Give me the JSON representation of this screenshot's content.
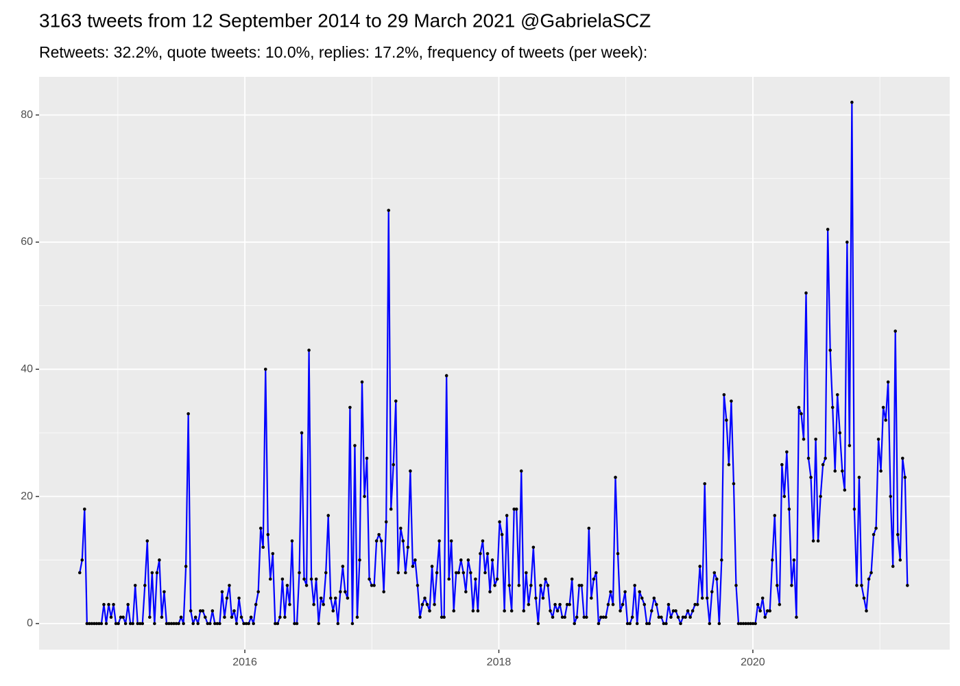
{
  "chart_data": {
    "type": "line",
    "title": "3163 tweets from 12 September 2014 to 29 March 2021 @GabrielaSCZ",
    "subtitle": "Retweets: 32.2%, quote tweets: 10.0%, replies: 17.2%, frequency of tweets (per week):",
    "color": "#0000ff",
    "point_color": "#000000",
    "xlim": [
      2014.38,
      2021.55
    ],
    "xticks": [
      2016,
      2018,
      2020
    ],
    "xminor": [
      2015,
      2017,
      2019,
      2021
    ],
    "ylim": [
      -4.1,
      86
    ],
    "yticks": [
      0,
      20,
      40,
      60,
      80
    ],
    "yminor": [
      10,
      30,
      50,
      70
    ],
    "grid": true,
    "x": [
      2014.7,
      2014.719,
      2014.738,
      2014.757,
      2014.776,
      2014.795,
      2014.814,
      2014.833,
      2014.852,
      2014.871,
      2014.89,
      2014.909,
      2014.928,
      2014.947,
      2014.966,
      2014.985,
      2015.004,
      2015.023,
      2015.042,
      2015.061,
      2015.08,
      2015.099,
      2015.118,
      2015.137,
      2015.156,
      2015.175,
      2015.194,
      2015.213,
      2015.232,
      2015.251,
      2015.27,
      2015.289,
      2015.308,
      2015.327,
      2015.346,
      2015.365,
      2015.384,
      2015.403,
      2015.422,
      2015.441,
      2015.46,
      2015.479,
      2015.498,
      2015.517,
      2015.536,
      2015.555,
      2015.574,
      2015.593,
      2015.612,
      2015.631,
      2015.65,
      2015.669,
      2015.688,
      2015.707,
      2015.726,
      2015.745,
      2015.764,
      2015.783,
      2015.802,
      2015.821,
      2015.84,
      2015.859,
      2015.878,
      2015.897,
      2015.916,
      2015.935,
      2015.954,
      2015.973,
      2015.992,
      2016.011,
      2016.03,
      2016.049,
      2016.068,
      2016.087,
      2016.106,
      2016.125,
      2016.144,
      2016.163,
      2016.182,
      2016.201,
      2016.22,
      2016.239,
      2016.258,
      2016.277,
      2016.296,
      2016.315,
      2016.334,
      2016.353,
      2016.372,
      2016.391,
      2016.41,
      2016.429,
      2016.448,
      2016.467,
      2016.486,
      2016.505,
      2016.524,
      2016.543,
      2016.562,
      2016.581,
      2016.6,
      2016.619,
      2016.638,
      2016.657,
      2016.676,
      2016.695,
      2016.714,
      2016.733,
      2016.752,
      2016.771,
      2016.79,
      2016.809,
      2016.828,
      2016.847,
      2016.866,
      2016.885,
      2016.904,
      2016.923,
      2016.942,
      2016.961,
      2016.98,
      2016.999,
      2017.018,
      2017.037,
      2017.056,
      2017.075,
      2017.094,
      2017.113,
      2017.132,
      2017.151,
      2017.17,
      2017.189,
      2017.208,
      2017.227,
      2017.246,
      2017.265,
      2017.284,
      2017.303,
      2017.322,
      2017.341,
      2017.36,
      2017.379,
      2017.398,
      2017.417,
      2017.436,
      2017.455,
      2017.474,
      2017.493,
      2017.512,
      2017.531,
      2017.55,
      2017.569,
      2017.588,
      2017.607,
      2017.626,
      2017.645,
      2017.664,
      2017.683,
      2017.702,
      2017.721,
      2017.74,
      2017.759,
      2017.778,
      2017.797,
      2017.816,
      2017.835,
      2017.854,
      2017.873,
      2017.892,
      2017.911,
      2017.93,
      2017.949,
      2017.968,
      2017.987,
      2018.006,
      2018.025,
      2018.044,
      2018.063,
      2018.082,
      2018.101,
      2018.12,
      2018.139,
      2018.158,
      2018.177,
      2018.196,
      2018.215,
      2018.234,
      2018.253,
      2018.272,
      2018.291,
      2018.31,
      2018.329,
      2018.348,
      2018.367,
      2018.386,
      2018.405,
      2018.424,
      2018.443,
      2018.462,
      2018.481,
      2018.5,
      2018.519,
      2018.538,
      2018.557,
      2018.576,
      2018.595,
      2018.614,
      2018.633,
      2018.652,
      2018.671,
      2018.69,
      2018.709,
      2018.728,
      2018.747,
      2018.766,
      2018.785,
      2018.804,
      2018.823,
      2018.842,
      2018.861,
      2018.88,
      2018.899,
      2018.918,
      2018.937,
      2018.956,
      2018.975,
      2018.994,
      2019.013,
      2019.032,
      2019.051,
      2019.07,
      2019.089,
      2019.108,
      2019.127,
      2019.146,
      2019.165,
      2019.184,
      2019.203,
      2019.222,
      2019.241,
      2019.26,
      2019.279,
      2019.298,
      2019.317,
      2019.336,
      2019.355,
      2019.374,
      2019.393,
      2019.412,
      2019.431,
      2019.45,
      2019.469,
      2019.488,
      2019.507,
      2019.526,
      2019.545,
      2019.564,
      2019.583,
      2019.602,
      2019.621,
      2019.64,
      2019.659,
      2019.678,
      2019.697,
      2019.716,
      2019.735,
      2019.754,
      2019.773,
      2019.792,
      2019.811,
      2019.83,
      2019.849,
      2019.868,
      2019.887,
      2019.906,
      2019.925,
      2019.944,
      2019.963,
      2019.982,
      2020.001,
      2020.02,
      2020.039,
      2020.058,
      2020.077,
      2020.096,
      2020.115,
      2020.134,
      2020.153,
      2020.172,
      2020.191,
      2020.21,
      2020.229,
      2020.248,
      2020.267,
      2020.286,
      2020.305,
      2020.324,
      2020.343,
      2020.362,
      2020.381,
      2020.4,
      2020.419,
      2020.438,
      2020.457,
      2020.476,
      2020.495,
      2020.514,
      2020.533,
      2020.552,
      2020.571,
      2020.59,
      2020.609,
      2020.628,
      2020.647,
      2020.666,
      2020.685,
      2020.704,
      2020.723,
      2020.742,
      2020.761,
      2020.78,
      2020.799,
      2020.818,
      2020.837,
      2020.856,
      2020.875,
      2020.894,
      2020.913,
      2020.932,
      2020.951,
      2020.97,
      2020.989,
      2021.008,
      2021.027,
      2021.046,
      2021.065,
      2021.084,
      2021.103,
      2021.122,
      2021.141,
      2021.16,
      2021.179,
      2021.198,
      2021.217
    ],
    "values": [
      8,
      10,
      18,
      0,
      0,
      0,
      0,
      0,
      0,
      0,
      3,
      0,
      3,
      1,
      3,
      0,
      0,
      1,
      1,
      0,
      3,
      0,
      0,
      6,
      0,
      0,
      0,
      6,
      13,
      1,
      8,
      0,
      8,
      10,
      1,
      5,
      0,
      0,
      0,
      0,
      0,
      0,
      1,
      0,
      9,
      33,
      2,
      0,
      1,
      0,
      2,
      2,
      1,
      0,
      0,
      2,
      0,
      0,
      0,
      5,
      1,
      4,
      6,
      1,
      2,
      0,
      4,
      1,
      0,
      0,
      0,
      1,
      0,
      3,
      5,
      15,
      12,
      40,
      14,
      7,
      11,
      0,
      0,
      1,
      7,
      1,
      6,
      3,
      13,
      0,
      0,
      8,
      30,
      7,
      6,
      43,
      7,
      3,
      7,
      0,
      4,
      3,
      8,
      17,
      4,
      2,
      4,
      0,
      5,
      9,
      5,
      4,
      34,
      0,
      28,
      1,
      10,
      38,
      20,
      26,
      7,
      6,
      6,
      13,
      14,
      13,
      5,
      16,
      65,
      18,
      25,
      35,
      8,
      15,
      13,
      8,
      12,
      24,
      9,
      10,
      6,
      1,
      3,
      4,
      3,
      2,
      9,
      3,
      8,
      13,
      1,
      1,
      39,
      7,
      13,
      2,
      8,
      8,
      10,
      8,
      5,
      10,
      8,
      2,
      7,
      2,
      11,
      13,
      8,
      11,
      5,
      10,
      6,
      7,
      16,
      14,
      2,
      17,
      6,
      2,
      18,
      18,
      6,
      24,
      2,
      8,
      3,
      6,
      12,
      4,
      0,
      6,
      4,
      7,
      6,
      2,
      1,
      3,
      2,
      3,
      1,
      1,
      3,
      3,
      7,
      0,
      1,
      6,
      6,
      1,
      1,
      15,
      4,
      7,
      8,
      0,
      1,
      1,
      1,
      3,
      5,
      3,
      23,
      11,
      2,
      3,
      5,
      0,
      0,
      1,
      6,
      0,
      5,
      4,
      3,
      0,
      0,
      2,
      4,
      3,
      1,
      1,
      0,
      0,
      3,
      1,
      2,
      2,
      1,
      0,
      1,
      1,
      2,
      1,
      2,
      3,
      3,
      9,
      4,
      22,
      4,
      0,
      5,
      8,
      7,
      0,
      10,
      36,
      32,
      25,
      35,
      22,
      6,
      0,
      0,
      0,
      0,
      0,
      0,
      0,
      0,
      3,
      2,
      4,
      1,
      2,
      2,
      10,
      17,
      6,
      3,
      25,
      20,
      27,
      18,
      6,
      10,
      1,
      34,
      33,
      29,
      52,
      26,
      23,
      13,
      29,
      13,
      20,
      25,
      26,
      62,
      43,
      34,
      24,
      36,
      30,
      24,
      21,
      60,
      28,
      82,
      18,
      6,
      23,
      6,
      4,
      2,
      7,
      8,
      14,
      15,
      29,
      24,
      34,
      32,
      38,
      20,
      9,
      46,
      14,
      10,
      26,
      23,
      6
    ]
  }
}
